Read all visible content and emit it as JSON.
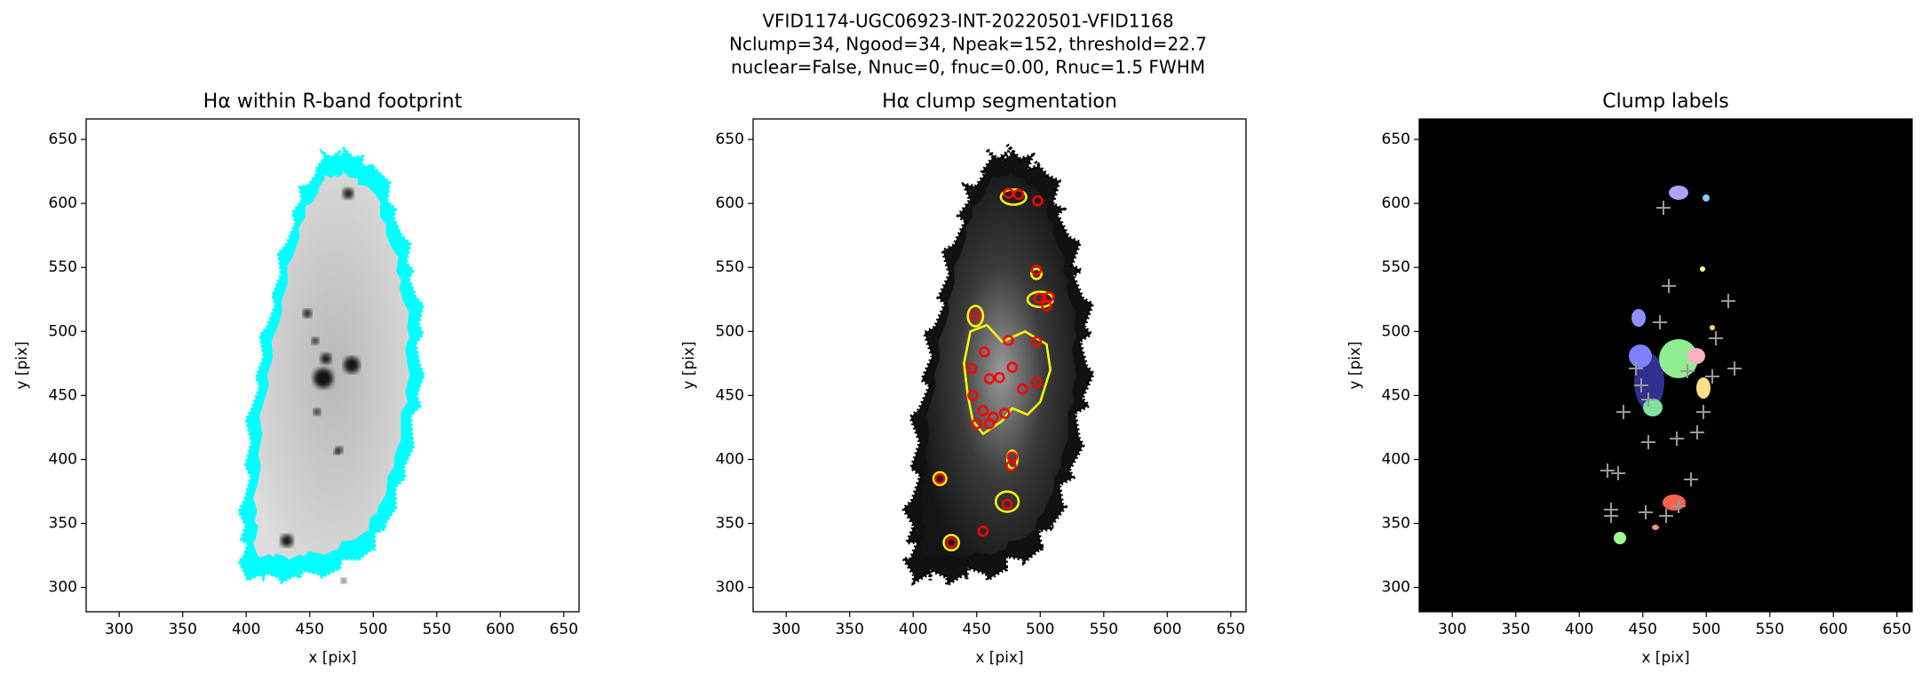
{
  "suptitle": [
    "VFID1174-UGC06923-INT-20220501-VFID1168",
    "Nclump=34, Ngood=34, Npeak=152, threshold=22.7",
    "nuclear=False, Nnuc=0, fnuc=0.00, Rnuc=1.5 FWHM"
  ],
  "chart_data": [
    {
      "type": "image",
      "title": "Hα within R-band footprint",
      "x_label": "x [pix]",
      "y_label": "y [pix]",
      "xlim": [
        274,
        662
      ],
      "ylim": [
        281,
        666
      ],
      "xticks": [
        300,
        350,
        400,
        450,
        500,
        550,
        600,
        650
      ],
      "yticks": [
        300,
        350,
        400,
        450,
        500,
        550,
        600,
        650
      ]
    },
    {
      "type": "image",
      "title": "Hα clump segmentation",
      "x_label": "x [pix]",
      "y_label": "y [pix]",
      "xlim": [
        274,
        662
      ],
      "ylim": [
        281,
        666
      ],
      "xticks": [
        300,
        350,
        400,
        450,
        500,
        550,
        600,
        650
      ],
      "yticks": [
        300,
        350,
        400,
        450,
        500,
        550,
        600,
        650
      ]
    },
    {
      "type": "image",
      "title": "Clump labels",
      "x_label": "x [pix]",
      "y_label": "y [pix]",
      "xlim": [
        274,
        662
      ],
      "ylim": [
        281,
        666
      ],
      "xticks": [
        300,
        350,
        400,
        450,
        500,
        550,
        600,
        650
      ],
      "yticks": [
        300,
        350,
        400,
        450,
        500,
        550,
        600,
        650
      ]
    }
  ]
}
